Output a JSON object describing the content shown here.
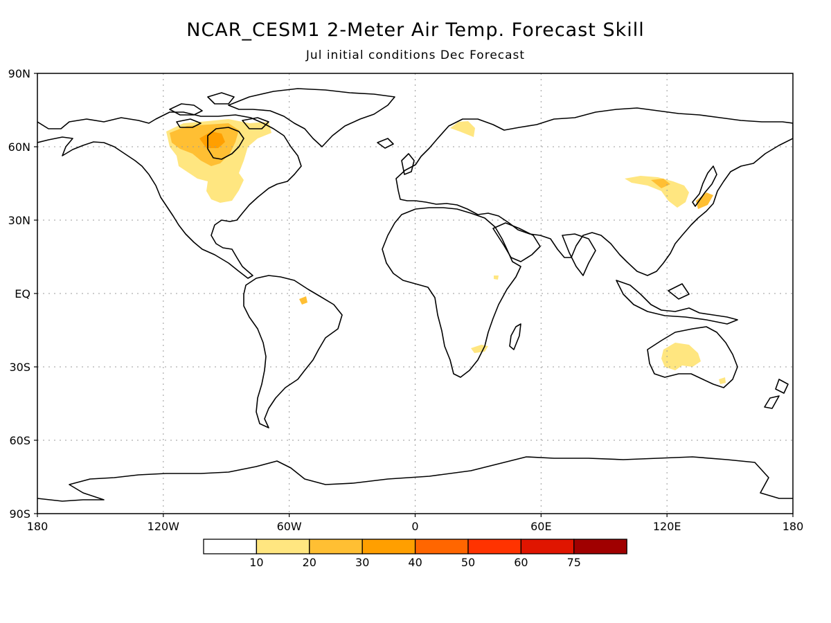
{
  "title": "NCAR_CESM1 2-Meter Air Temp. Forecast Skill",
  "subtitle": "Jul initial conditions   Dec Forecast",
  "axes": {
    "x_ticks": [
      "180",
      "120W",
      "60W",
      "0",
      "60E",
      "120E",
      "180"
    ],
    "y_ticks": [
      "90N",
      "60N",
      "30N",
      "EQ",
      "30S",
      "60S",
      "90S"
    ],
    "lon_range": [
      -180,
      180
    ],
    "lat_range": [
      -90,
      90
    ],
    "grid": "dotted, every 30 degrees"
  },
  "colorbar": {
    "labels": [
      "10",
      "20",
      "30",
      "40",
      "50",
      "60",
      "75"
    ],
    "colors": [
      "#ffffff",
      "#ffe680",
      "#ffbf33",
      "#ff9f00",
      "#ff6600",
      "#ff3300",
      "#e01500",
      "#a00000"
    ]
  },
  "skill_regions": [
    {
      "name": "central-canada",
      "level": "10-20",
      "color": "#ffe680"
    },
    {
      "name": "hudson-bay",
      "level": "20-30",
      "color": "#ffbf33"
    },
    {
      "name": "hudson-bay-core",
      "level": "30-40",
      "color": "#ff9f00"
    },
    {
      "name": "scandinavia",
      "level": "10-20",
      "color": "#ffe680"
    },
    {
      "name": "north-china-korea",
      "level": "10-20",
      "color": "#ffe680"
    },
    {
      "name": "north-china-core",
      "level": "20-30",
      "color": "#ffbf33"
    },
    {
      "name": "japan",
      "level": "20-30",
      "color": "#ffbf33"
    },
    {
      "name": "western-australia",
      "level": "10-20",
      "color": "#ffe680"
    },
    {
      "name": "mozambique",
      "level": "10-20",
      "color": "#ffe680"
    },
    {
      "name": "amazon-spot",
      "level": "20-30",
      "color": "#ffbf33"
    }
  ]
}
